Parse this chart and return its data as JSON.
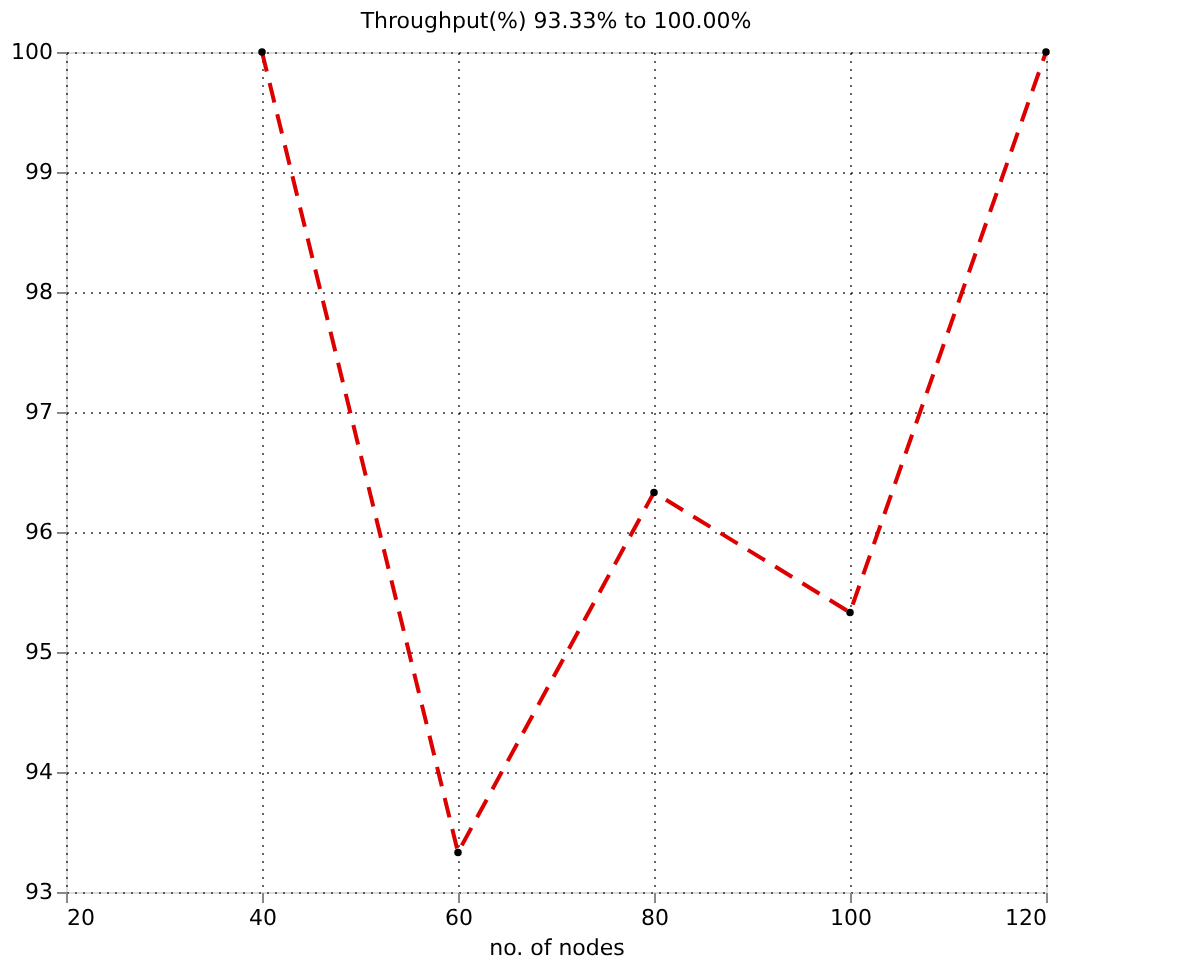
{
  "chart_data": {
    "type": "line",
    "title": "Throughput(%) 93.33% to 100.00%",
    "xlabel": "no. of nodes",
    "x": [
      40,
      60,
      80,
      100,
      120
    ],
    "series": [
      {
        "color": "#dd0000",
        "values": [
          100,
          93.33,
          96.33,
          95.33,
          100
        ]
      }
    ],
    "xlim": [
      20,
      120
    ],
    "xticks": [
      20,
      40,
      60,
      80,
      100,
      120
    ],
    "ylim": [
      93,
      100
    ],
    "yticks": [
      93,
      94,
      95,
      96,
      97,
      98,
      99,
      100
    ],
    "grid": true,
    "marker": "circle",
    "line_style": "dashed"
  }
}
